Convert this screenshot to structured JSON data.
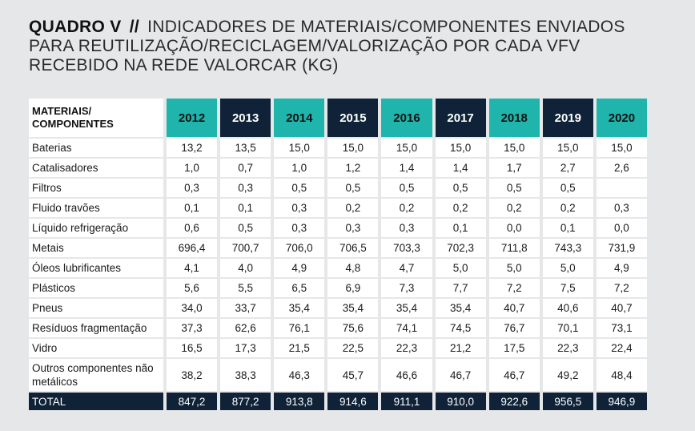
{
  "title": {
    "label": "QUADRO V",
    "separator": "//",
    "text": "INDICADORES DE MATERIAIS/COMPONENTES ENVIADOS PARA REUTILIZAÇÃO/RECICLAGEM/VALORIZAÇÃO POR CADA VFV RECEBIDO NA REDE VALORCAR (KG)"
  },
  "table": {
    "header_label": "MATERIAIS/ COMPONENTES",
    "years": [
      "2012",
      "2013",
      "2014",
      "2015",
      "2016",
      "2017",
      "2018",
      "2019",
      "2020"
    ],
    "header_colors": [
      "#1fb5ac",
      "#0f2238"
    ],
    "rows": [
      {
        "name": "Baterias",
        "values": [
          "13,2",
          "13,5",
          "15,0",
          "15,0",
          "15,0",
          "15,0",
          "15,0",
          "15,0",
          "15,0"
        ]
      },
      {
        "name": "Catalisadores",
        "values": [
          "1,0",
          "0,7",
          "1,0",
          "1,2",
          "1,4",
          "1,4",
          "1,7",
          "2,7",
          "2,6"
        ]
      },
      {
        "name": "Filtros",
        "values": [
          "0,3",
          "0,3",
          "0,5",
          "0,5",
          "0,5",
          "0,5",
          "0,5",
          "0,5",
          ""
        ]
      },
      {
        "name": "Fluido travões",
        "values": [
          "0,1",
          "0,1",
          "0,3",
          "0,2",
          "0,2",
          "0,2",
          "0,2",
          "0,2",
          "0,3"
        ]
      },
      {
        "name": "Líquido refrigeração",
        "values": [
          "0,6",
          "0,5",
          "0,3",
          "0,3",
          "0,3",
          "0,1",
          "0,0",
          "0,1",
          "0,0"
        ]
      },
      {
        "name": "Metais",
        "values": [
          "696,4",
          "700,7",
          "706,0",
          "706,5",
          "703,3",
          "702,3",
          "711,8",
          "743,3",
          "731,9"
        ]
      },
      {
        "name": "Óleos lubrificantes",
        "values": [
          "4,1",
          "4,0",
          "4,9",
          "4,8",
          "4,7",
          "5,0",
          "5,0",
          "5,0",
          "4,9"
        ]
      },
      {
        "name": "Plásticos",
        "values": [
          "5,6",
          "5,5",
          "6,5",
          "6,9",
          "7,3",
          "7,7",
          "7,2",
          "7,5",
          "7,2"
        ]
      },
      {
        "name": "Pneus",
        "values": [
          "34,0",
          "33,7",
          "35,4",
          "35,4",
          "35,4",
          "35,4",
          "40,7",
          "40,6",
          "40,7"
        ]
      },
      {
        "name": "Resíduos fragmentação",
        "values": [
          "37,3",
          "62,6",
          "76,1",
          "75,6",
          "74,1",
          "74,5",
          "76,7",
          "70,1",
          "73,1"
        ]
      },
      {
        "name": "Vidro",
        "values": [
          "16,5",
          "17,3",
          "21,5",
          "22,5",
          "22,3",
          "21,2",
          "17,5",
          "22,3",
          "22,4"
        ]
      },
      {
        "name": "Outros componentes não metálicos",
        "values": [
          "38,2",
          "38,3",
          "46,3",
          "45,7",
          "46,6",
          "46,7",
          "46,7",
          "49,2",
          "48,4"
        ],
        "tall": true
      }
    ],
    "total": {
      "name": "TOTAL",
      "values": [
        "847,2",
        "877,2",
        "913,8",
        "914,6",
        "911,1",
        "910,0",
        "922,6",
        "956,5",
        "946,9"
      ]
    }
  }
}
